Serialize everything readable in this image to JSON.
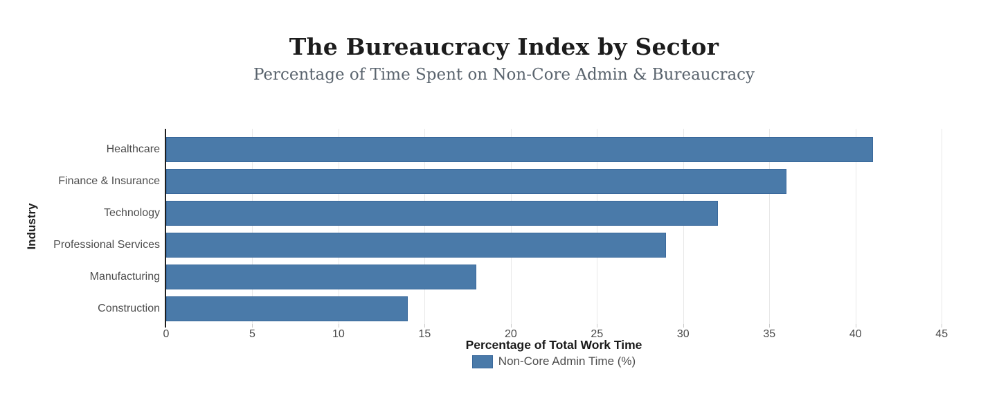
{
  "chart": {
    "title": "The Bureaucracy Index by Sector",
    "subtitle": "Percentage of Time Spent on Non-Core Admin & Bureaucracy",
    "xlabel": "Percentage of Total Work Time",
    "ylabel": "Industry",
    "legend_label": "Non-Core Admin Time (%)"
  },
  "chart_data": {
    "type": "bar",
    "orientation": "horizontal",
    "title": "The Bureaucracy Index by Sector",
    "subtitle": "Percentage of Time Spent on Non-Core Admin & Bureaucracy",
    "xlabel": "Percentage of Total Work Time",
    "ylabel": "Industry",
    "categories": [
      "Healthcare",
      "Finance & Insurance",
      "Technology",
      "Professional Services",
      "Manufacturing",
      "Construction"
    ],
    "series": [
      {
        "name": "Non-Core Admin Time (%)",
        "values": [
          41,
          36,
          32,
          29,
          18,
          14
        ]
      }
    ],
    "xlim": [
      0,
      47
    ],
    "xticks": [
      0,
      5,
      10,
      15,
      20,
      25,
      30,
      35,
      40,
      45
    ],
    "grid": "vertical",
    "legend_position": "bottom-center",
    "bar_color": "#4a7aa9",
    "bar_border_color": "#3a699c",
    "background_color": "#ffffff"
  }
}
